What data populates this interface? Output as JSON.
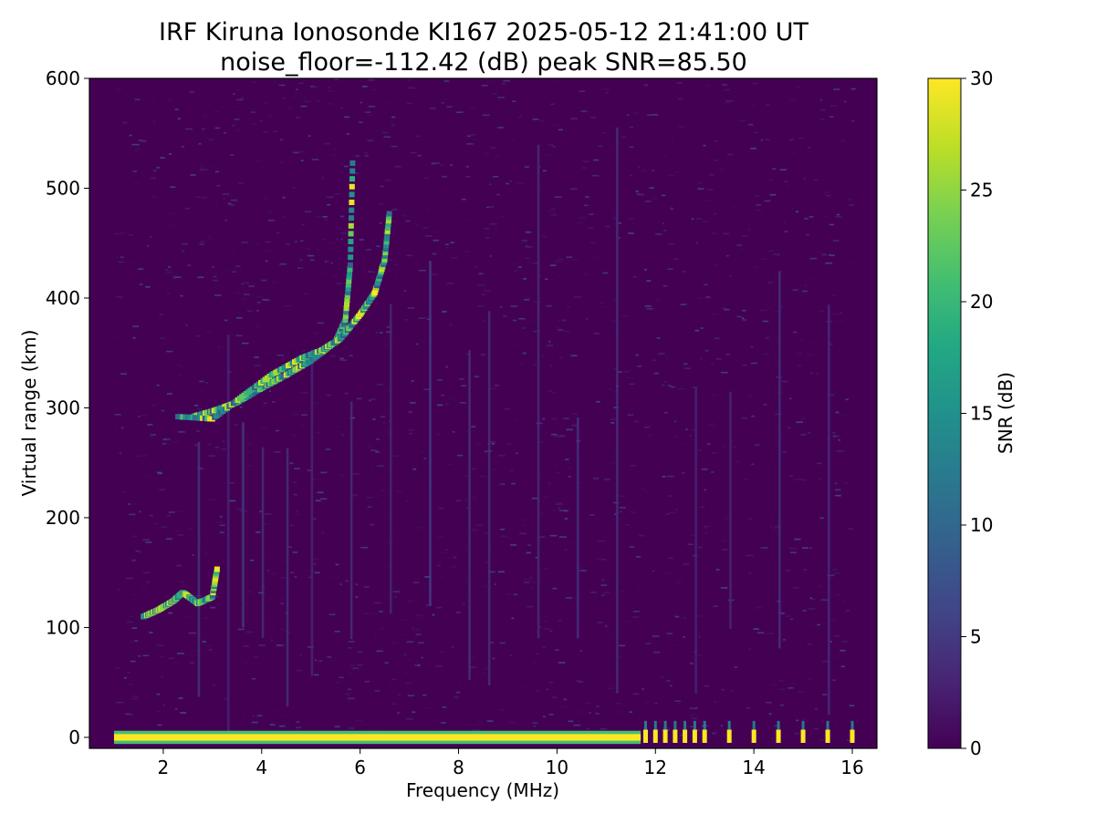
{
  "chart_data": {
    "type": "heatmap",
    "title": "IRF Kiruna Ionosonde KI167 2025-05-12 21:41:00  UT",
    "subtitle": "noise_floor=-112.42 (dB) peak SNR=85.50",
    "xlabel": "Frequency (MHz)",
    "ylabel": "Virtual range (km)",
    "xlim": [
      0.5,
      16.5
    ],
    "ylim": [
      -10,
      600
    ],
    "xticks": [
      2,
      4,
      6,
      8,
      10,
      12,
      14,
      16
    ],
    "yticks": [
      0,
      100,
      200,
      300,
      400,
      500,
      600
    ],
    "colorbar": {
      "label": "SNR (dB)",
      "range": [
        0,
        30
      ],
      "ticks": [
        0,
        5,
        10,
        15,
        20,
        25,
        30
      ],
      "colormap": "viridis"
    },
    "data_extent_mhz": [
      1.0,
      16.0
    ],
    "traces": [
      {
        "name": "ground-echo-continuous",
        "x": [
          1.0,
          11.7
        ],
        "y": 0,
        "snr": 30
      },
      {
        "name": "ground-echo-discrete",
        "x": [
          11.8,
          12.0,
          12.2,
          12.4,
          12.6,
          12.8,
          13.0,
          13.5,
          14.0,
          14.5,
          15.0,
          15.5,
          16.0
        ],
        "y": 0,
        "snr": 30
      },
      {
        "name": "E-layer-trace",
        "points": [
          [
            1.6,
            110
          ],
          [
            1.9,
            116
          ],
          [
            2.2,
            124
          ],
          [
            2.4,
            132
          ],
          [
            2.7,
            122
          ],
          [
            3.0,
            128
          ],
          [
            3.1,
            155
          ]
        ]
      },
      {
        "name": "F-layer-ordinary",
        "points": [
          [
            2.6,
            292
          ],
          [
            3.0,
            297
          ],
          [
            3.5,
            305
          ],
          [
            4.0,
            318
          ],
          [
            4.5,
            330
          ],
          [
            5.0,
            343
          ],
          [
            5.5,
            360
          ],
          [
            5.7,
            380
          ],
          [
            5.8,
            430
          ],
          [
            5.85,
            530
          ]
        ]
      },
      {
        "name": "F-layer-extraordinary",
        "points": [
          [
            2.3,
            292
          ],
          [
            3.0,
            290
          ],
          [
            3.6,
            310
          ],
          [
            4.2,
            330
          ],
          [
            4.8,
            345
          ],
          [
            5.2,
            352
          ],
          [
            5.6,
            363
          ],
          [
            6.0,
            385
          ],
          [
            6.3,
            405
          ],
          [
            6.5,
            435
          ],
          [
            6.6,
            480
          ]
        ]
      }
    ],
    "vertical_streaks_mhz": [
      2.7,
      3.3,
      3.6,
      4.0,
      4.5,
      5.0,
      5.8,
      6.6,
      7.4,
      8.2,
      8.6,
      9.6,
      10.4,
      11.2,
      12.8,
      13.5,
      14.5,
      15.5
    ],
    "grid": false,
    "legend": "none"
  }
}
